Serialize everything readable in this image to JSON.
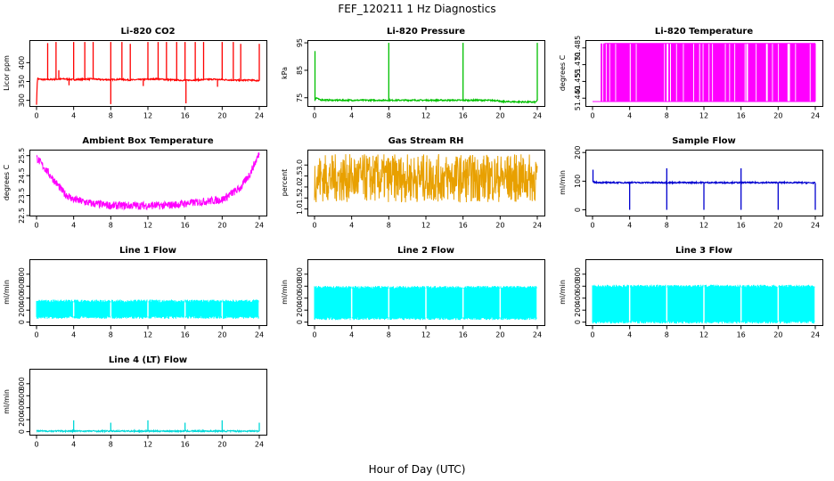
{
  "figure": {
    "title": "FEF_120211  1 Hz Diagnostics",
    "xlabel": "Hour of Day (UTC)"
  },
  "chart_data": [
    {
      "type": "line",
      "title": "Li-820 CO2",
      "ylabel": "Licor ppm",
      "color": "#ff0000",
      "style": "spiky",
      "x_ticks": [
        0,
        4,
        8,
        12,
        16,
        20,
        24
      ],
      "xlim": [
        0,
        24
      ],
      "y_ticks": [
        300,
        350,
        400
      ],
      "ylim": [
        285,
        460
      ],
      "series": [
        {
          "x": [
            0,
            0.1,
            0.2,
            0.3,
            1,
            2,
            3,
            4,
            5,
            6,
            7,
            8,
            9,
            10,
            11,
            12,
            13,
            14,
            15,
            16,
            17,
            18,
            19,
            20,
            21,
            22,
            23,
            24
          ],
          "values": [
            290,
            360,
            357,
            356,
            355,
            356,
            357,
            355,
            356,
            357,
            355,
            355,
            356,
            354,
            355,
            356,
            357,
            355,
            354,
            353,
            354,
            355,
            356,
            355,
            354,
            353,
            354,
            352
          ]
        }
      ],
      "spikes": [
        {
          "x": 1.2,
          "value": 452
        },
        {
          "x": 2.1,
          "value": 455
        },
        {
          "x": 2.4,
          "value": 380
        },
        {
          "x": 4.0,
          "value": 455
        },
        {
          "x": 5.2,
          "value": 455
        },
        {
          "x": 6.1,
          "value": 455
        },
        {
          "x": 8.0,
          "value": 455
        },
        {
          "x": 9.2,
          "value": 455
        },
        {
          "x": 10.1,
          "value": 450
        },
        {
          "x": 12.0,
          "value": 455
        },
        {
          "x": 13.1,
          "value": 455
        },
        {
          "x": 14.0,
          "value": 455
        },
        {
          "x": 15.1,
          "value": 455
        },
        {
          "x": 16.0,
          "value": 455
        },
        {
          "x": 17.1,
          "value": 455
        },
        {
          "x": 18.0,
          "value": 455
        },
        {
          "x": 20.0,
          "value": 455
        },
        {
          "x": 21.2,
          "value": 455
        },
        {
          "x": 22.0,
          "value": 450
        },
        {
          "x": 24.0,
          "value": 450
        },
        {
          "x": 8.0,
          "value": 290
        },
        {
          "x": 16.1,
          "value": 292
        },
        {
          "x": 3.5,
          "value": 340
        },
        {
          "x": 11.5,
          "value": 338
        },
        {
          "x": 19.5,
          "value": 336
        }
      ]
    },
    {
      "type": "line",
      "title": "Li-820 Pressure",
      "ylabel": "kPa",
      "color": "#00c000",
      "style": "spiky",
      "x_ticks": [
        0,
        4,
        8,
        12,
        16,
        20,
        24
      ],
      "xlim": [
        0,
        24
      ],
      "y_ticks": [
        75,
        85,
        95
      ],
      "ylim": [
        72,
        96
      ],
      "series": [
        {
          "x": [
            0,
            0.2,
            0.5,
            1,
            2,
            4,
            6,
            8,
            10,
            12,
            14,
            16,
            18,
            19.8,
            20,
            22,
            23.8,
            24
          ],
          "values": [
            74,
            75,
            74.3,
            74.2,
            74.1,
            74.1,
            74.1,
            74.1,
            74.1,
            74.1,
            74.1,
            74.1,
            74.1,
            74.0,
            73.6,
            73.5,
            73.4,
            74
          ]
        }
      ],
      "spikes": [
        {
          "x": 0.05,
          "value": 92
        },
        {
          "x": 8.0,
          "value": 95
        },
        {
          "x": 16.0,
          "value": 95
        },
        {
          "x": 24.0,
          "value": 95
        }
      ]
    },
    {
      "type": "line",
      "title": "Li-820 Temperature",
      "ylabel": "degrees C",
      "color": "#ff00ff",
      "style": "binary",
      "x_ticks": [
        0,
        4,
        8,
        12,
        16,
        20,
        24
      ],
      "xlim": [
        0,
        24
      ],
      "y_ticks": [
        51.44,
        51.455,
        51.47,
        51.485
      ],
      "y_tick_labels": [
        "51.440",
        "51.455",
        "51.470",
        "51.485"
      ],
      "ylim": [
        51.433,
        51.492
      ],
      "levels": [
        51.437,
        51.489
      ],
      "series": [
        {
          "x": [
            0,
            1,
            1.3,
            2.2,
            3.4,
            4,
            6,
            8,
            10,
            12,
            14,
            16,
            18,
            20,
            22,
            24
          ],
          "values": [
            51.437,
            51.437,
            51.489,
            51.489,
            51.489,
            51.489,
            51.489,
            51.489,
            51.489,
            51.489,
            51.489,
            51.489,
            51.489,
            51.489,
            51.489,
            51.489
          ]
        }
      ]
    },
    {
      "type": "line",
      "title": "Ambient Box Temperature",
      "ylabel": "degrees C",
      "color": "#ff00ff",
      "style": "noisy",
      "x_ticks": [
        0,
        4,
        8,
        12,
        16,
        20,
        24
      ],
      "xlim": [
        0,
        24
      ],
      "y_ticks": [
        22.5,
        23.5,
        24.5,
        25.5
      ],
      "ylim": [
        22.5,
        25.8
      ],
      "noise": 0.2,
      "series": [
        {
          "x": [
            0,
            1,
            2,
            3,
            4,
            6,
            8,
            10,
            12,
            14,
            16,
            18,
            20,
            21,
            22,
            23,
            24
          ],
          "values": [
            25.4,
            24.8,
            24.2,
            23.6,
            23.3,
            23.1,
            23.0,
            23.0,
            23.0,
            23.0,
            23.1,
            23.2,
            23.3,
            23.6,
            23.9,
            24.6,
            25.6
          ]
        }
      ]
    },
    {
      "type": "line",
      "title": "Gas Stream RH",
      "ylabel": "percent",
      "color": "#e8a000",
      "style": "noisy",
      "x_ticks": [
        0,
        4,
        8,
        12,
        16,
        20,
        24
      ],
      "xlim": [
        0,
        24
      ],
      "y_ticks": [
        1,
        1.5,
        2,
        2.5,
        3
      ],
      "y_tick_labels": [
        "1.0",
        "1.5",
        "2.0",
        "2.5",
        "3.0"
      ],
      "ylim": [
        0.7,
        3.7
      ],
      "noise": 1.1,
      "series": [
        {
          "x": [
            0,
            4,
            8,
            12,
            16,
            20,
            24
          ],
          "values": [
            2.4,
            2.4,
            2.4,
            2.4,
            2.4,
            2.4,
            2.4
          ]
        }
      ]
    },
    {
      "type": "line",
      "title": "Sample Flow",
      "ylabel": "ml/min",
      "color": "#0000d0",
      "style": "spiky",
      "x_ticks": [
        0,
        4,
        8,
        12,
        16,
        20,
        24
      ],
      "xlim": [
        0,
        24
      ],
      "y_ticks": [
        0,
        100,
        200
      ],
      "ylim": [
        -20,
        210
      ],
      "series": [
        {
          "x": [
            0,
            0.2,
            1,
            2,
            4,
            6,
            8,
            10,
            12,
            14,
            16,
            18,
            20,
            22,
            23.8
          ],
          "values": [
            100,
            96,
            95,
            95,
            95,
            95,
            95,
            95,
            95,
            95,
            95,
            95,
            95,
            95,
            94
          ]
        }
      ],
      "spikes": [
        {
          "x": 0.05,
          "value": 140
        },
        {
          "x": 4.0,
          "value": 0
        },
        {
          "x": 8.0,
          "value": 0
        },
        {
          "x": 8.0,
          "value": 145
        },
        {
          "x": 12.0,
          "value": 0
        },
        {
          "x": 16.0,
          "value": 0
        },
        {
          "x": 16.0,
          "value": 145
        },
        {
          "x": 20.0,
          "value": 0
        },
        {
          "x": 24.0,
          "value": 0
        }
      ]
    },
    {
      "type": "line",
      "title": "Line 1 Flow",
      "ylabel": "ml/min",
      "color": "#00ffff",
      "style": "band",
      "x_ticks": [
        0,
        4,
        8,
        12,
        16,
        20,
        24
      ],
      "xlim": [
        0,
        24
      ],
      "y_ticks": [
        0,
        200,
        400,
        600,
        800
      ],
      "ylim": [
        -50,
        1050
      ],
      "band": [
        100,
        330
      ],
      "gaps": [
        4,
        8,
        12,
        16,
        20,
        24
      ],
      "series": [
        {
          "x": [
            0,
            24
          ],
          "values": [
            215,
            215
          ]
        }
      ]
    },
    {
      "type": "line",
      "title": "Line 2 Flow",
      "ylabel": "ml/min",
      "color": "#00ffff",
      "style": "band",
      "x_ticks": [
        0,
        4,
        8,
        12,
        16,
        20,
        24
      ],
      "xlim": [
        0,
        24
      ],
      "y_ticks": [
        0,
        200,
        400,
        600,
        800
      ],
      "ylim": [
        -50,
        1050
      ],
      "band": [
        80,
        560
      ],
      "gaps": [
        4,
        8,
        12,
        16,
        20,
        24
      ],
      "series": [
        {
          "x": [
            0,
            24
          ],
          "values": [
            320,
            320
          ]
        }
      ]
    },
    {
      "type": "line",
      "title": "Line 3 Flow",
      "ylabel": "ml/min",
      "color": "#00ffff",
      "style": "band",
      "x_ticks": [
        0,
        4,
        8,
        12,
        16,
        20,
        24
      ],
      "xlim": [
        0,
        24
      ],
      "y_ticks": [
        0,
        200,
        400,
        600,
        800
      ],
      "ylim": [
        -50,
        1050
      ],
      "band": [
        20,
        580
      ],
      "gaps": [
        4,
        8,
        12,
        16,
        20,
        24
      ],
      "series": [
        {
          "x": [
            0,
            24
          ],
          "values": [
            300,
            300
          ]
        }
      ]
    },
    {
      "type": "line",
      "title": "Line 4 (LT) Flow",
      "ylabel": "ml/min",
      "color": "#00d8d8",
      "style": "spiky",
      "x_ticks": [
        0,
        4,
        8,
        12,
        16,
        20,
        24
      ],
      "xlim": [
        0,
        24
      ],
      "y_ticks": [
        0,
        200,
        400,
        600,
        800
      ],
      "ylim": [
        -50,
        1050
      ],
      "series": [
        {
          "x": [
            0,
            4,
            8,
            12,
            16,
            20,
            24
          ],
          "values": [
            10,
            10,
            10,
            10,
            10,
            10,
            10
          ]
        }
      ],
      "spikes": [
        {
          "x": 4.0,
          "value": 190
        },
        {
          "x": 8.0,
          "value": 150
        },
        {
          "x": 12.0,
          "value": 190
        },
        {
          "x": 16.0,
          "value": 150
        },
        {
          "x": 20.0,
          "value": 190
        },
        {
          "x": 24.0,
          "value": 150
        }
      ]
    }
  ]
}
